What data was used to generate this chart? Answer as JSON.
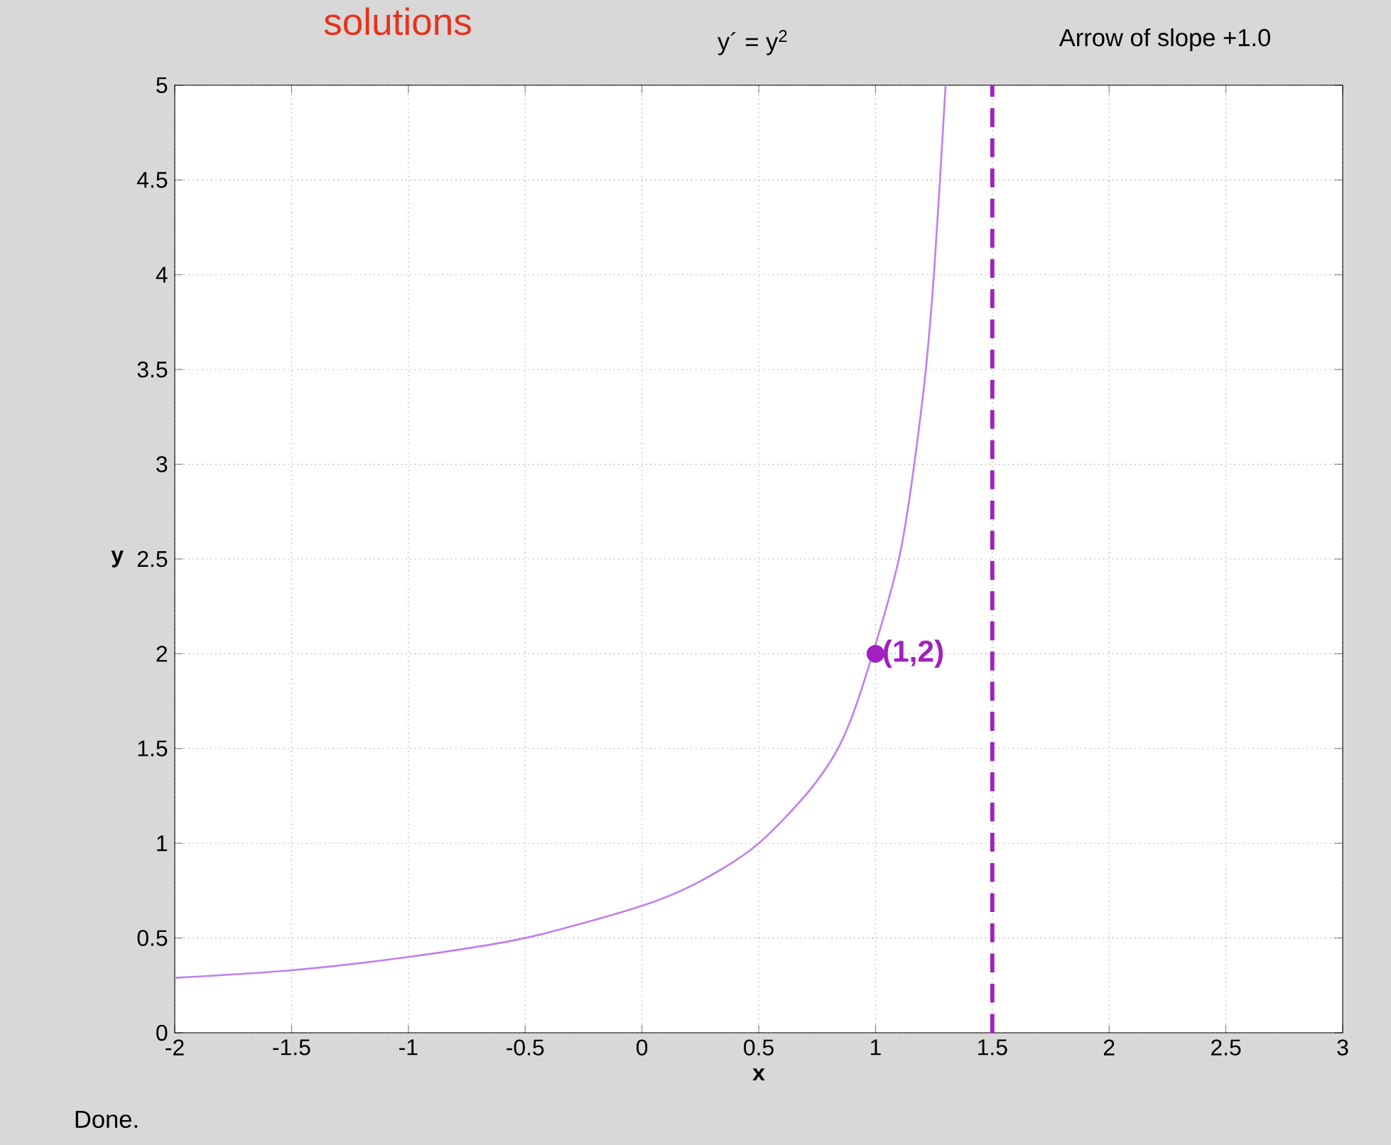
{
  "chart_data": {
    "type": "line",
    "title": "y´ = y$^{2}$",
    "xlabel": "x",
    "ylabel": "y",
    "xlim": [
      -2,
      3
    ],
    "ylim": [
      0,
      5
    ],
    "xticks": [
      -2,
      -1.5,
      -1,
      -0.5,
      0,
      0.5,
      1,
      1.5,
      2,
      2.5,
      3
    ],
    "yticks": [
      0,
      0.5,
      1,
      1.5,
      2,
      2.5,
      3,
      3.5,
      4,
      4.5,
      5
    ],
    "grid": true,
    "series": [
      {
        "color": "#c080f0",
        "marker": "none",
        "x": [
          -2,
          -1.5,
          -1,
          -0.5,
          0,
          0.25,
          0.5,
          0.75,
          0.9,
          1,
          1.1,
          1.2,
          1.25,
          1.3
        ],
        "values": [
          0.29,
          0.33,
          0.4,
          0.5,
          0.67,
          0.8,
          1,
          1.33,
          1.67,
          null,
          2.5,
          3.33,
          4,
          5
        ]
      },
      {
        "type": "scatter",
        "color": "#a020c0",
        "marker": "circle",
        "x": [
          1
        ],
        "values": [
          2
        ]
      }
    ],
    "ref_lines": [
      {
        "axis": "x",
        "value": 1.5,
        "color": "#a020c0",
        "line_style": "dashed"
      }
    ],
    "annotations": [
      {
        "text": "(1,2)",
        "x": 1,
        "y": 2
      },
      "Arrow of slope +1.0",
      "Done.",
      "solutions"
    ]
  }
}
